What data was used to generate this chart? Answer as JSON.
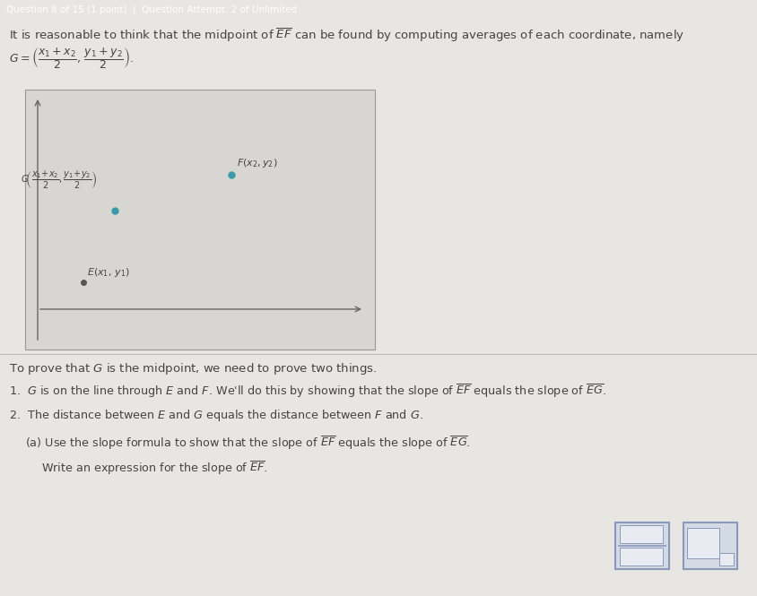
{
  "header_bg": "#5a8a6a",
  "header_text": "Question 8 of 15 (1 point)  |  Question Attempt: 2 of Unlimited",
  "header_text_color": "#ffffff",
  "body_bg": "#e8e6e2",
  "graph_bg": "#d8d6d2",
  "main_text_color": "#444444",
  "point_color_teal": "#3a9aaa",
  "point_color_dark": "#555555",
  "intro_line": "It is reasonable to think that the midpoint of $\\overline{EF}$ can be found by computing averages of each coordinate, namely",
  "formula_G": "$G = \\left(\\dfrac{x_1+x_2}{2},\\, \\dfrac{y_1+y_2}{2}\\right).$",
  "point_F_label": "$F(x_2, y_2)$",
  "point_G_label": "$G\\!\\left(\\dfrac{x_1\\!+\\!x_2}{2},\\dfrac{y_1\\!+\\!y_2}{2}\\right)$",
  "point_E_label": "$E(x_1,\\,y_1)$",
  "prove_text": "To prove that $G$ is the midpoint, we need to prove two things.",
  "item1": "1.  $G$ is on the line through $E$ and $F$. We'll do this by showing that the slope of $\\overline{EF}$ equals the slope of $\\overline{EG}$.",
  "item2": "2.  The distance between $E$ and $G$ equals the distance between $F$ and $G$.",
  "part_a_line1": "(a) Use the slope formula to show that the slope of $\\overline{EF}$ equals the slope of $\\overline{EG}$.",
  "part_a_line2": "Write an expression for the slope of $\\overline{EF}$.",
  "answer_box_bg": "#d4dae4",
  "answer_box_edge": "#8899bb"
}
